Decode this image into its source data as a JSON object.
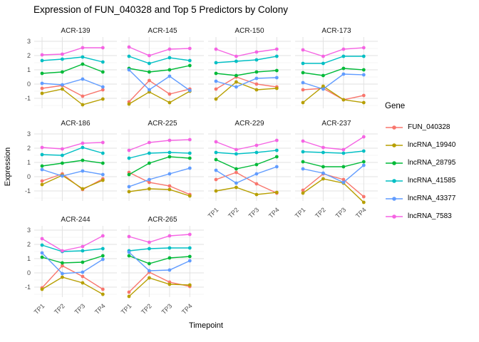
{
  "title": "Expression of FUN_040328 and Top 5 Predictors by Colony",
  "axes": {
    "x_label": "Timepoint",
    "y_label": "Expression",
    "x_ticks": [
      "TP1",
      "TP2",
      "TP3",
      "TP4"
    ],
    "y_ticks": [
      3,
      2,
      1,
      0,
      -1
    ]
  },
  "legend": {
    "title": "Gene",
    "position": "right",
    "entries": [
      {
        "gene": "FUN_040328",
        "color": "#F8766D"
      },
      {
        "gene": "lncRNA_19940",
        "color": "#B79F00"
      },
      {
        "gene": "lncRNA_28795",
        "color": "#00BA38"
      },
      {
        "gene": "lncRNA_41585",
        "color": "#00BFC4"
      },
      {
        "gene": "lncRNA_43377",
        "color": "#619CFF"
      },
      {
        "gene": "lncRNA_7583",
        "color": "#F564E3"
      }
    ]
  },
  "chart_data": {
    "type": "line",
    "title": "Expression of FUN_040328 and Top 5 Predictors by Colony",
    "xlabel": "Timepoint",
    "ylabel": "Expression",
    "x_categories": [
      "TP1",
      "TP2",
      "TP3",
      "TP4"
    ],
    "y_ticks": [
      3,
      2,
      1,
      0,
      -1
    ],
    "ylim": [
      -1.7,
      3.3
    ],
    "grid": "major+minor",
    "legend_position": "right",
    "facet_layout": {
      "ncol": 4,
      "nrow": 3
    },
    "facets": [
      {
        "name": "ACR-139",
        "series": [
          {
            "gene": "FUN_040328",
            "values": [
              -0.3,
              -0.1,
              -0.85,
              -0.4
            ]
          },
          {
            "gene": "lncRNA_19940",
            "values": [
              -0.65,
              -0.35,
              -1.45,
              -1.05
            ]
          },
          {
            "gene": "lncRNA_28795",
            "values": [
              0.75,
              0.85,
              1.4,
              0.85
            ]
          },
          {
            "gene": "lncRNA_41585",
            "values": [
              1.65,
              1.75,
              1.9,
              1.55
            ]
          },
          {
            "gene": "lncRNA_43377",
            "values": [
              0.05,
              -0.05,
              0.35,
              -0.2
            ]
          },
          {
            "gene": "lncRNA_7583",
            "values": [
              2.05,
              2.1,
              2.55,
              2.55
            ]
          }
        ]
      },
      {
        "name": "ACR-145",
        "series": [
          {
            "gene": "FUN_040328",
            "values": [
              -1.25,
              0.25,
              -0.7,
              -0.35
            ]
          },
          {
            "gene": "lncRNA_19940",
            "values": [
              -1.4,
              -0.55,
              -1.3,
              -0.5
            ]
          },
          {
            "gene": "lncRNA_28795",
            "values": [
              1.1,
              0.85,
              1.0,
              1.3
            ]
          },
          {
            "gene": "lncRNA_41585",
            "values": [
              1.95,
              1.45,
              1.85,
              1.65
            ]
          },
          {
            "gene": "lncRNA_43377",
            "values": [
              1.0,
              -0.4,
              0.55,
              -0.45
            ]
          },
          {
            "gene": "lncRNA_7583",
            "values": [
              2.6,
              2.0,
              2.45,
              2.5
            ]
          }
        ]
      },
      {
        "name": "ACR-150",
        "series": [
          {
            "gene": "FUN_040328",
            "values": [
              -0.35,
              0.5,
              0.0,
              -0.2
            ]
          },
          {
            "gene": "lncRNA_19940",
            "values": [
              -1.05,
              0.15,
              -0.4,
              -0.3
            ]
          },
          {
            "gene": "lncRNA_28795",
            "values": [
              0.75,
              0.6,
              0.85,
              0.95
            ]
          },
          {
            "gene": "lncRNA_41585",
            "values": [
              1.5,
              1.6,
              1.7,
              1.95
            ]
          },
          {
            "gene": "lncRNA_43377",
            "values": [
              0.2,
              -0.2,
              0.4,
              0.45
            ]
          },
          {
            "gene": "lncRNA_7583",
            "values": [
              2.45,
              1.95,
              2.25,
              2.45
            ]
          }
        ]
      },
      {
        "name": "ACR-173",
        "series": [
          {
            "gene": "FUN_040328",
            "values": [
              -0.4,
              -0.3,
              -1.1,
              -0.8
            ]
          },
          {
            "gene": "lncRNA_19940",
            "values": [
              -1.3,
              -0.15,
              -1.1,
              -1.3
            ]
          },
          {
            "gene": "lncRNA_28795",
            "values": [
              0.8,
              0.6,
              1.1,
              1.0
            ]
          },
          {
            "gene": "lncRNA_41585",
            "values": [
              1.45,
              1.45,
              1.95,
              1.95
            ]
          },
          {
            "gene": "lncRNA_43377",
            "values": [
              0.1,
              -0.35,
              0.7,
              0.65
            ]
          },
          {
            "gene": "lncRNA_7583",
            "values": [
              2.4,
              1.95,
              2.45,
              2.55
            ]
          }
        ]
      },
      {
        "name": "ACR-186",
        "series": [
          {
            "gene": "FUN_040328",
            "values": [
              -0.3,
              0.2,
              -0.9,
              -0.15
            ]
          },
          {
            "gene": "lncRNA_19940",
            "values": [
              -0.55,
              0.1,
              -0.85,
              -0.25
            ]
          },
          {
            "gene": "lncRNA_28795",
            "values": [
              0.75,
              0.95,
              1.15,
              0.95
            ]
          },
          {
            "gene": "lncRNA_41585",
            "values": [
              1.55,
              1.5,
              2.05,
              1.65
            ]
          },
          {
            "gene": "lncRNA_43377",
            "values": [
              0.5,
              0.05,
              0.4,
              0.15
            ]
          },
          {
            "gene": "lncRNA_7583",
            "values": [
              2.05,
              1.95,
              2.35,
              2.4
            ]
          }
        ]
      },
      {
        "name": "ACR-225",
        "series": [
          {
            "gene": "FUN_040328",
            "values": [
              0.3,
              -0.4,
              -0.65,
              -1.25
            ]
          },
          {
            "gene": "lncRNA_19940",
            "values": [
              -1.05,
              -0.85,
              -0.9,
              -1.35
            ]
          },
          {
            "gene": "lncRNA_28795",
            "values": [
              0.15,
              0.95,
              1.4,
              1.3
            ]
          },
          {
            "gene": "lncRNA_41585",
            "values": [
              1.3,
              1.65,
              1.7,
              1.65
            ]
          },
          {
            "gene": "lncRNA_43377",
            "values": [
              -0.7,
              -0.2,
              0.2,
              0.6
            ]
          },
          {
            "gene": "lncRNA_7583",
            "values": [
              1.85,
              2.4,
              2.55,
              2.6
            ]
          }
        ]
      },
      {
        "name": "ACR-229",
        "series": [
          {
            "gene": "FUN_040328",
            "values": [
              -0.2,
              0.3,
              -0.5,
              -1.15
            ]
          },
          {
            "gene": "lncRNA_19940",
            "values": [
              -1.0,
              -0.75,
              -1.25,
              -1.1
            ]
          },
          {
            "gene": "lncRNA_28795",
            "values": [
              1.2,
              0.55,
              0.85,
              1.4
            ]
          },
          {
            "gene": "lncRNA_41585",
            "values": [
              1.7,
              1.6,
              1.7,
              1.85
            ]
          },
          {
            "gene": "lncRNA_43377",
            "values": [
              0.45,
              -0.45,
              0.2,
              0.7
            ]
          },
          {
            "gene": "lncRNA_7583",
            "values": [
              2.45,
              1.9,
              2.2,
              2.55
            ]
          }
        ]
      },
      {
        "name": "ACR-237",
        "series": [
          {
            "gene": "FUN_040328",
            "values": [
              -0.95,
              0.2,
              -0.2,
              -1.4
            ]
          },
          {
            "gene": "lncRNA_19940",
            "values": [
              -1.15,
              -0.15,
              -0.45,
              -1.8
            ]
          },
          {
            "gene": "lncRNA_28795",
            "values": [
              1.05,
              0.7,
              0.7,
              1.05
            ]
          },
          {
            "gene": "lncRNA_41585",
            "values": [
              1.75,
              1.7,
              1.65,
              1.8
            ]
          },
          {
            "gene": "lncRNA_43377",
            "values": [
              0.55,
              0.25,
              -0.4,
              0.8
            ]
          },
          {
            "gene": "lncRNA_7583",
            "values": [
              2.5,
              2.05,
              1.9,
              2.8
            ]
          }
        ]
      },
      {
        "name": "ACR-244",
        "series": [
          {
            "gene": "FUN_040328",
            "values": [
              -1.05,
              0.5,
              -0.25,
              -1.15
            ]
          },
          {
            "gene": "lncRNA_19940",
            "values": [
              -1.15,
              -0.3,
              -0.7,
              -1.5
            ]
          },
          {
            "gene": "lncRNA_28795",
            "values": [
              1.1,
              0.7,
              0.75,
              1.2
            ]
          },
          {
            "gene": "lncRNA_41585",
            "values": [
              1.95,
              1.5,
              1.55,
              1.7
            ]
          },
          {
            "gene": "lncRNA_43377",
            "values": [
              1.4,
              -0.05,
              0.05,
              0.95
            ]
          },
          {
            "gene": "lncRNA_7583",
            "values": [
              2.4,
              1.55,
              1.85,
              2.6
            ]
          }
        ]
      },
      {
        "name": "ACR-265",
        "series": [
          {
            "gene": "FUN_040328",
            "values": [
              -1.35,
              0.05,
              -0.65,
              -0.95
            ]
          },
          {
            "gene": "lncRNA_19940",
            "values": [
              -1.65,
              -0.35,
              -0.8,
              -0.85
            ]
          },
          {
            "gene": "lncRNA_28795",
            "values": [
              1.2,
              0.65,
              1.05,
              1.15
            ]
          },
          {
            "gene": "lncRNA_41585",
            "values": [
              1.55,
              1.7,
              1.75,
              1.75
            ]
          },
          {
            "gene": "lncRNA_43377",
            "values": [
              1.45,
              0.15,
              0.2,
              0.85
            ]
          },
          {
            "gene": "lncRNA_7583",
            "values": [
              2.55,
              2.15,
              2.6,
              2.7
            ]
          }
        ]
      }
    ]
  }
}
